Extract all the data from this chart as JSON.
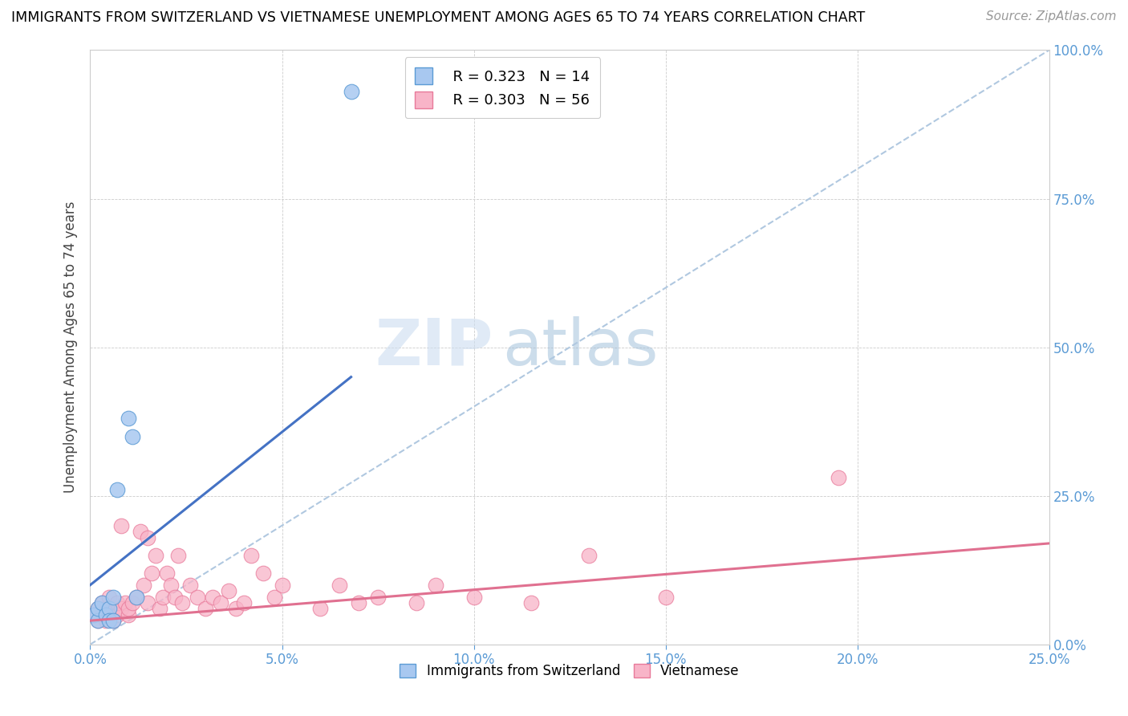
{
  "title": "IMMIGRANTS FROM SWITZERLAND VS VIETNAMESE UNEMPLOYMENT AMONG AGES 65 TO 74 YEARS CORRELATION CHART",
  "source": "Source: ZipAtlas.com",
  "ylabel": "Unemployment Among Ages 65 to 74 years",
  "xlim": [
    0.0,
    0.25
  ],
  "ylim": [
    0.0,
    1.0
  ],
  "xticks": [
    0.0,
    0.05,
    0.1,
    0.15,
    0.2,
    0.25
  ],
  "yticks": [
    0.0,
    0.25,
    0.5,
    0.75,
    1.0
  ],
  "xtick_labels": [
    "0.0%",
    "5.0%",
    "10.0%",
    "15.0%",
    "20.0%",
    "25.0%"
  ],
  "ytick_labels": [
    "0.0%",
    "25.0%",
    "50.0%",
    "75.0%",
    "100.0%"
  ],
  "legend_label1": "Immigrants from Switzerland",
  "legend_label2": "Vietnamese",
  "legend_R1": "R = 0.323",
  "legend_N1": "N = 14",
  "legend_R2": "R = 0.303",
  "legend_N2": "N = 56",
  "color_swiss_fill": "#a8c8f0",
  "color_swiss_edge": "#5b9bd5",
  "color_viet_fill": "#f8b4c8",
  "color_viet_edge": "#e87a9a",
  "color_swiss_line": "#4472c4",
  "color_viet_line": "#e07090",
  "color_diag": "#b0c8e0",
  "watermark_zip": "ZIP",
  "watermark_atlas": "atlas",
  "swiss_x": [
    0.001,
    0.002,
    0.002,
    0.003,
    0.004,
    0.005,
    0.005,
    0.006,
    0.006,
    0.007,
    0.01,
    0.011,
    0.068,
    0.012
  ],
  "swiss_y": [
    0.05,
    0.04,
    0.06,
    0.07,
    0.05,
    0.06,
    0.04,
    0.08,
    0.04,
    0.26,
    0.38,
    0.35,
    0.93,
    0.08
  ],
  "viet_x": [
    0.001,
    0.002,
    0.002,
    0.003,
    0.003,
    0.004,
    0.004,
    0.005,
    0.005,
    0.006,
    0.006,
    0.007,
    0.007,
    0.008,
    0.008,
    0.009,
    0.01,
    0.01,
    0.011,
    0.012,
    0.013,
    0.014,
    0.015,
    0.015,
    0.016,
    0.017,
    0.018,
    0.019,
    0.02,
    0.021,
    0.022,
    0.023,
    0.024,
    0.026,
    0.028,
    0.03,
    0.032,
    0.034,
    0.036,
    0.038,
    0.04,
    0.042,
    0.045,
    0.048,
    0.05,
    0.06,
    0.065,
    0.07,
    0.075,
    0.085,
    0.09,
    0.1,
    0.115,
    0.13,
    0.15,
    0.195
  ],
  "viet_y": [
    0.05,
    0.04,
    0.06,
    0.05,
    0.07,
    0.04,
    0.06,
    0.05,
    0.08,
    0.04,
    0.06,
    0.05,
    0.07,
    0.06,
    0.2,
    0.07,
    0.05,
    0.06,
    0.07,
    0.08,
    0.19,
    0.1,
    0.18,
    0.07,
    0.12,
    0.15,
    0.06,
    0.08,
    0.12,
    0.1,
    0.08,
    0.15,
    0.07,
    0.1,
    0.08,
    0.06,
    0.08,
    0.07,
    0.09,
    0.06,
    0.07,
    0.15,
    0.12,
    0.08,
    0.1,
    0.06,
    0.1,
    0.07,
    0.08,
    0.07,
    0.1,
    0.08,
    0.07,
    0.15,
    0.08,
    0.28
  ],
  "swiss_line_x0": 0.0,
  "swiss_line_y0": 0.1,
  "swiss_line_x1": 0.068,
  "swiss_line_y1": 0.45,
  "viet_line_x0": 0.0,
  "viet_line_y0": 0.04,
  "viet_line_x1": 0.25,
  "viet_line_y1": 0.17
}
